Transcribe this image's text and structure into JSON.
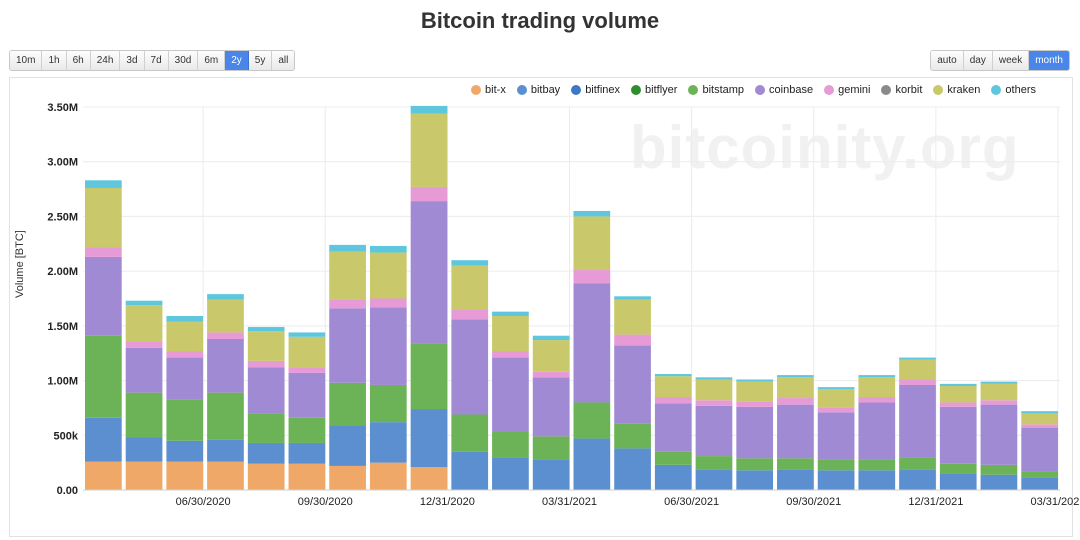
{
  "title": "Bitcoin trading volume",
  "range_buttons": [
    {
      "label": "10m",
      "active": false
    },
    {
      "label": "1h",
      "active": false
    },
    {
      "label": "6h",
      "active": false
    },
    {
      "label": "24h",
      "active": false
    },
    {
      "label": "3d",
      "active": false
    },
    {
      "label": "7d",
      "active": false
    },
    {
      "label": "30d",
      "active": false
    },
    {
      "label": "6m",
      "active": false
    },
    {
      "label": "2y",
      "active": true
    },
    {
      "label": "5y",
      "active": false
    },
    {
      "label": "all",
      "active": false
    }
  ],
  "resolution_buttons": [
    {
      "label": "auto",
      "active": false
    },
    {
      "label": "day",
      "active": false
    },
    {
      "label": "week",
      "active": false
    },
    {
      "label": "month",
      "active": true
    }
  ],
  "watermark": "bitcoinity.org",
  "chart_data": {
    "type": "bar",
    "stacked": true,
    "title": "Bitcoin trading volume",
    "ylabel": "Volume [BTC]",
    "xlabel": "",
    "ylim": [
      0,
      3500000
    ],
    "y_ticks": [
      {
        "value": 0,
        "label": "0.00"
      },
      {
        "value": 500000,
        "label": "500k"
      },
      {
        "value": 1000000,
        "label": "1.00M"
      },
      {
        "value": 1500000,
        "label": "1.50M"
      },
      {
        "value": 2000000,
        "label": "2.00M"
      },
      {
        "value": 2500000,
        "label": "2.50M"
      },
      {
        "value": 3000000,
        "label": "3.00M"
      },
      {
        "value": 3500000,
        "label": "3.50M"
      }
    ],
    "x_ticks": [
      {
        "after_bar": 2,
        "label": "06/30/2020"
      },
      {
        "after_bar": 5,
        "label": "09/30/2020"
      },
      {
        "after_bar": 8,
        "label": "12/31/2020"
      },
      {
        "after_bar": 11,
        "label": "03/31/2021"
      },
      {
        "after_bar": 14,
        "label": "06/30/2021"
      },
      {
        "after_bar": 17,
        "label": "09/30/2021"
      },
      {
        "after_bar": 20,
        "label": "12/31/2021"
      },
      {
        "after_bar": 23,
        "label": "03/31/2022"
      }
    ],
    "categories": [
      "2020-04",
      "2020-05",
      "2020-06",
      "2020-07",
      "2020-08",
      "2020-09",
      "2020-10",
      "2020-11",
      "2020-12",
      "2021-01",
      "2021-02",
      "2021-03",
      "2021-04",
      "2021-05",
      "2021-06",
      "2021-07",
      "2021-08",
      "2021-09",
      "2021-10",
      "2021-11",
      "2021-12",
      "2022-01",
      "2022-02",
      "2022-03"
    ],
    "series": [
      {
        "name": "bit-x",
        "color": "#f0a868",
        "values": [
          260000,
          260000,
          260000,
          260000,
          240000,
          240000,
          220000,
          250000,
          210000,
          0,
          0,
          0,
          0,
          0,
          0,
          0,
          0,
          0,
          0,
          0,
          0,
          0,
          0,
          0
        ]
      },
      {
        "name": "bitbay",
        "color": "#5b8fd0",
        "values": [
          400000,
          220000,
          190000,
          200000,
          190000,
          190000,
          370000,
          370000,
          530000,
          350000,
          300000,
          280000,
          470000,
          380000,
          230000,
          190000,
          180000,
          190000,
          180000,
          180000,
          190000,
          150000,
          140000,
          110000
        ]
      },
      {
        "name": "bitfinex",
        "color": "#3f78c2",
        "values": [
          0,
          0,
          0,
          0,
          0,
          0,
          0,
          0,
          0,
          0,
          0,
          0,
          0,
          0,
          0,
          0,
          0,
          0,
          0,
          0,
          0,
          0,
          0,
          0
        ]
      },
      {
        "name": "bitflyer",
        "color": "#2f8f2f",
        "values": [
          0,
          0,
          0,
          0,
          0,
          0,
          0,
          0,
          0,
          0,
          0,
          0,
          0,
          0,
          0,
          0,
          0,
          0,
          0,
          0,
          0,
          0,
          0,
          0
        ]
      },
      {
        "name": "bitstamp",
        "color": "#6cb256",
        "values": [
          750000,
          410000,
          380000,
          430000,
          270000,
          230000,
          390000,
          340000,
          600000,
          340000,
          230000,
          210000,
          330000,
          230000,
          120000,
          120000,
          110000,
          100000,
          100000,
          100000,
          110000,
          90000,
          90000,
          60000
        ]
      },
      {
        "name": "coinbase",
        "color": "#a08ad4",
        "values": [
          720000,
          410000,
          380000,
          490000,
          420000,
          410000,
          680000,
          710000,
          1300000,
          870000,
          680000,
          540000,
          1090000,
          710000,
          440000,
          460000,
          470000,
          490000,
          430000,
          520000,
          660000,
          520000,
          550000,
          400000
        ]
      },
      {
        "name": "gemini",
        "color": "#e69ad6",
        "values": [
          90000,
          60000,
          60000,
          60000,
          60000,
          50000,
          80000,
          80000,
          130000,
          90000,
          60000,
          50000,
          120000,
          100000,
          60000,
          50000,
          50000,
          60000,
          40000,
          50000,
          50000,
          40000,
          40000,
          30000
        ]
      },
      {
        "name": "korbit",
        "color": "#8a8a8a",
        "values": [
          0,
          0,
          0,
          0,
          0,
          0,
          0,
          0,
          0,
          0,
          0,
          0,
          0,
          0,
          0,
          0,
          0,
          0,
          0,
          0,
          0,
          0,
          0,
          0
        ]
      },
      {
        "name": "kraken",
        "color": "#c9c86a",
        "values": [
          540000,
          330000,
          270000,
          300000,
          270000,
          280000,
          440000,
          420000,
          670000,
          400000,
          320000,
          290000,
          490000,
          320000,
          190000,
          190000,
          180000,
          190000,
          170000,
          180000,
          180000,
          150000,
          150000,
          100000
        ]
      },
      {
        "name": "others",
        "color": "#5fc7dd",
        "values": [
          70000,
          40000,
          50000,
          50000,
          40000,
          40000,
          60000,
          60000,
          70000,
          50000,
          40000,
          40000,
          50000,
          30000,
          20000,
          20000,
          20000,
          20000,
          20000,
          20000,
          20000,
          20000,
          20000,
          20000
        ]
      }
    ]
  }
}
